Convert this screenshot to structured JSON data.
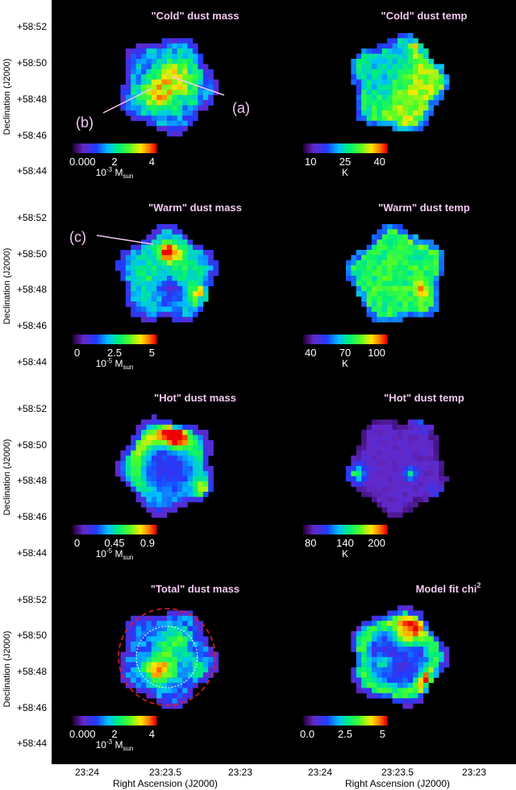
{
  "figure": {
    "y_ticks": [
      "+58:52",
      "+58:50",
      "+58:48",
      "+58:46",
      "+58:44"
    ],
    "y_axis_label": "Declination (J2000)",
    "x_ticks": [
      "23:24",
      "23:23.5",
      "23:23"
    ],
    "x_axis_label": "Right Ascension (J2000)"
  },
  "panels": [
    {
      "id": "cold-mass",
      "title": "\"Cold\" dust mass",
      "ticks": [
        "0.000",
        "2",
        "4"
      ],
      "unit": "10",
      "unit_sup": "-3",
      "unit_tail": " M",
      "unit_sub": "sun",
      "map": "mass_cold"
    },
    {
      "id": "cold-temp",
      "title": "\"Cold\" dust temp",
      "ticks": [
        "10",
        "25",
        "40"
      ],
      "unit": "K",
      "unit_sup": "",
      "unit_tail": "",
      "unit_sub": "",
      "map": "temp_cold"
    },
    {
      "id": "warm-mass",
      "title": "\"Warm\" dust mass",
      "ticks": [
        "0",
        "2.5",
        "5"
      ],
      "unit": "10",
      "unit_sup": "-5",
      "unit_tail": " M",
      "unit_sub": "sun",
      "map": "mass_warm"
    },
    {
      "id": "warm-temp",
      "title": "\"Warm\" dust temp",
      "ticks": [
        "40",
        "70",
        "100"
      ],
      "unit": "K",
      "unit_sup": "",
      "unit_tail": "",
      "unit_sub": "",
      "map": "temp_warm"
    },
    {
      "id": "hot-mass",
      "title": "\"Hot\" dust mass",
      "ticks": [
        "0",
        "0.45",
        "0.9"
      ],
      "unit": "10",
      "unit_sup": "-5",
      "unit_tail": " M",
      "unit_sub": "sun",
      "map": "mass_hot"
    },
    {
      "id": "hot-temp",
      "title": "\"Hot\" dust temp",
      "ticks": [
        "80",
        "140",
        "200"
      ],
      "unit": "K",
      "unit_sup": "",
      "unit_tail": "",
      "unit_sub": "",
      "map": "temp_hot"
    },
    {
      "id": "total-mass",
      "title": "\"Total\" dust mass",
      "ticks": [
        "0.000",
        "2",
        "4"
      ],
      "unit": "10",
      "unit_sup": "-3",
      "unit_tail": " M",
      "unit_sub": "sun",
      "map": "mass_total"
    },
    {
      "id": "chi2",
      "title": "Model fit chi",
      "title_sup": "2",
      "ticks": [
        "0.0",
        "2.5",
        "5"
      ],
      "unit": "",
      "unit_sup": "",
      "unit_tail": "",
      "unit_sub": "",
      "map": "chi2"
    }
  ],
  "annotations": [
    "(a)",
    "(b)",
    "(c)"
  ],
  "colors": {
    "background": "#000000",
    "annotation": "#f2c9f2",
    "circle_outer": "#e02020",
    "circle_inner": "#ffffff"
  }
}
